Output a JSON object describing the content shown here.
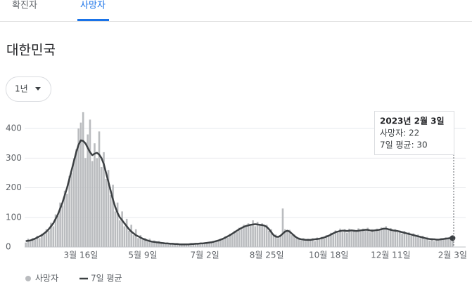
{
  "tabs": [
    "확진자",
    "사망자"
  ],
  "region": "대한민국",
  "range_button": "1년",
  "tooltip": {
    "title": "2023년 2월 3일",
    "lines": [
      "사망자: 22",
      "7일 평균: 30"
    ]
  },
  "chart_data": {
    "type": "bar",
    "ylim": [
      0,
      450
    ],
    "yticks": [
      0,
      100,
      200,
      300,
      400
    ],
    "grid": true,
    "categories": [
      null,
      null,
      null,
      null,
      null,
      null,
      null,
      null,
      null,
      null,
      null,
      null,
      null,
      null,
      null,
      null,
      null,
      null,
      null,
      null,
      null,
      null,
      null,
      null,
      "3월 16일",
      null,
      null,
      null,
      null,
      null,
      null,
      null,
      null,
      null,
      null,
      null,
      null,
      null,
      null,
      null,
      null,
      null,
      null,
      null,
      null,
      null,
      null,
      null,
      null,
      null,
      null,
      "5월 9일",
      null,
      null,
      null,
      null,
      null,
      null,
      null,
      null,
      null,
      null,
      null,
      null,
      null,
      null,
      null,
      null,
      null,
      null,
      null,
      null,
      null,
      null,
      null,
      null,
      null,
      null,
      "7월 2일",
      null,
      null,
      null,
      null,
      null,
      null,
      null,
      null,
      null,
      null,
      null,
      null,
      null,
      null,
      null,
      null,
      null,
      null,
      null,
      null,
      null,
      null,
      null,
      null,
      null,
      null,
      "8월 25일",
      null,
      null,
      null,
      null,
      null,
      null,
      null,
      null,
      null,
      null,
      null,
      null,
      null,
      null,
      null,
      null,
      null,
      null,
      null,
      null,
      null,
      null,
      null,
      null,
      null,
      null,
      "10월 18일",
      null,
      null,
      null,
      null,
      null,
      null,
      null,
      null,
      null,
      null,
      null,
      null,
      null,
      null,
      null,
      null,
      null,
      null,
      null,
      null,
      null,
      null,
      null,
      null,
      null,
      null,
      "12월 11일",
      null,
      null,
      null,
      null,
      null,
      null,
      null,
      null,
      null,
      null,
      null,
      null,
      null,
      null,
      null,
      null,
      null,
      null,
      null,
      null,
      null,
      null,
      null,
      null,
      null,
      null,
      "2월 3일"
    ],
    "series": [
      {
        "name": "사망자",
        "type": "bar",
        "color": "#babcbf",
        "values": [
          15,
          28,
          18,
          30,
          25,
          38,
          30,
          45,
          42,
          60,
          55,
          82,
          70,
          110,
          105,
          150,
          140,
          190,
          180,
          240,
          250,
          300,
          330,
          400,
          420,
          455,
          300,
          380,
          430,
          290,
          350,
          300,
          390,
          270,
          320,
          230,
          260,
          175,
          210,
          120,
          150,
          90,
          120,
          70,
          95,
          55,
          75,
          40,
          60,
          30,
          40,
          25,
          30,
          18,
          28,
          15,
          22,
          13,
          20,
          12,
          16,
          10,
          14,
          9,
          13,
          8,
          12,
          7,
          11,
          8,
          10,
          8,
          12,
          9,
          13,
          10,
          14,
          11,
          15,
          13,
          14,
          18,
          16,
          22,
          20,
          28,
          25,
          36,
          32,
          45,
          42,
          55,
          50,
          65,
          60,
          75,
          68,
          80,
          72,
          90,
          70,
          85,
          72,
          80,
          68,
          75,
          55,
          60,
          38,
          42,
          30,
          40,
          130,
          60,
          55,
          58,
          40,
          42,
          28,
          32,
          22,
          30,
          20,
          28,
          22,
          30,
          20,
          32,
          25,
          34,
          28,
          40,
          35,
          48,
          42,
          56,
          48,
          62,
          50,
          60,
          48,
          62,
          52,
          58,
          50,
          63,
          52,
          62,
          55,
          65,
          50,
          60,
          52,
          62,
          55,
          66,
          60,
          70,
          58,
          64,
          52,
          60,
          50,
          56,
          45,
          54,
          42,
          50,
          38,
          46,
          35,
          42,
          30,
          38,
          26,
          34,
          22,
          30,
          20,
          28,
          22,
          30,
          25,
          33,
          28,
          35,
          22
        ]
      },
      {
        "name": "7일 평균",
        "type": "line",
        "color": "#3c4043",
        "values": [
          20,
          21,
          22,
          25,
          28,
          32,
          36,
          40,
          46,
          52,
          60,
          70,
          80,
          95,
          110,
          130,
          150,
          175,
          200,
          230,
          260,
          290,
          320,
          345,
          360,
          358,
          350,
          335,
          320,
          310,
          315,
          318,
          312,
          300,
          280,
          250,
          220,
          190,
          160,
          135,
          115,
          100,
          90,
          80,
          70,
          60,
          52,
          46,
          40,
          36,
          32,
          28,
          25,
          22,
          20,
          18,
          17,
          16,
          15,
          14,
          13,
          12,
          12,
          11,
          11,
          10,
          10,
          9,
          9,
          9,
          9,
          9,
          10,
          10,
          11,
          11,
          12,
          12,
          13,
          14,
          15,
          16,
          18,
          20,
          22,
          25,
          28,
          32,
          36,
          40,
          45,
          50,
          55,
          60,
          64,
          68,
          71,
          73,
          75,
          76,
          77,
          76,
          75,
          74,
          72,
          68,
          60,
          50,
          40,
          35,
          34,
          38,
          45,
          52,
          55,
          52,
          45,
          38,
          32,
          28,
          26,
          25,
          24,
          24,
          24,
          25,
          26,
          27,
          28,
          30,
          32,
          35,
          38,
          42,
          46,
          50,
          52,
          54,
          55,
          55,
          54,
          55,
          56,
          55,
          54,
          55,
          56,
          57,
          58,
          58,
          56,
          55,
          56,
          57,
          58,
          60,
          62,
          62,
          60,
          58,
          56,
          55,
          54,
          52,
          50,
          48,
          46,
          44,
          42,
          40,
          38,
          36,
          34,
          32,
          30,
          28,
          27,
          26,
          26,
          25,
          25,
          26,
          27,
          28,
          29,
          30,
          30
        ]
      }
    ]
  }
}
